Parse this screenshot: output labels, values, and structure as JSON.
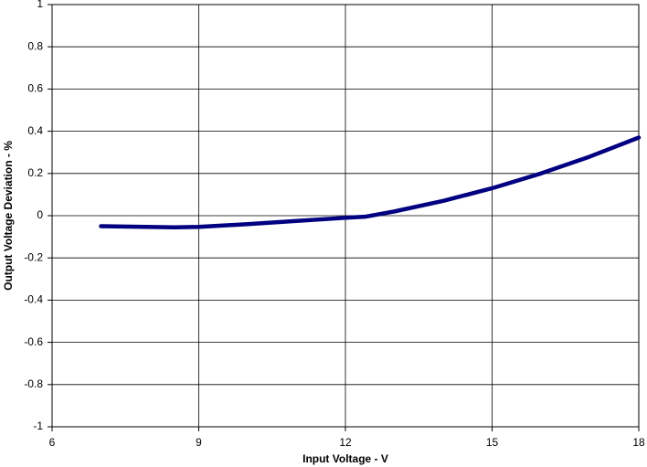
{
  "chart_data": {
    "type": "line",
    "x_label": "Input Voltage - V",
    "y_label": "Output Voltage Deviation - %",
    "x": [
      7,
      8.5,
      9,
      10,
      11,
      12,
      12.4,
      13,
      14,
      15,
      16,
      17,
      18
    ],
    "series": [
      {
        "name": "Output Voltage Deviation",
        "color": "#000080",
        "values": [
          -0.05,
          -0.055,
          -0.053,
          -0.04,
          -0.025,
          -0.01,
          -0.005,
          0.02,
          0.07,
          0.13,
          0.2,
          0.28,
          0.37
        ]
      }
    ],
    "xlim": [
      6,
      18
    ],
    "xticks": [
      6,
      9,
      12,
      15,
      18
    ],
    "ylim": [
      -1,
      1
    ],
    "yticks": [
      -1,
      -0.8,
      -0.6,
      -0.4,
      -0.2,
      0,
      0.2,
      0.4,
      0.6,
      0.8,
      1
    ],
    "grid": true
  }
}
